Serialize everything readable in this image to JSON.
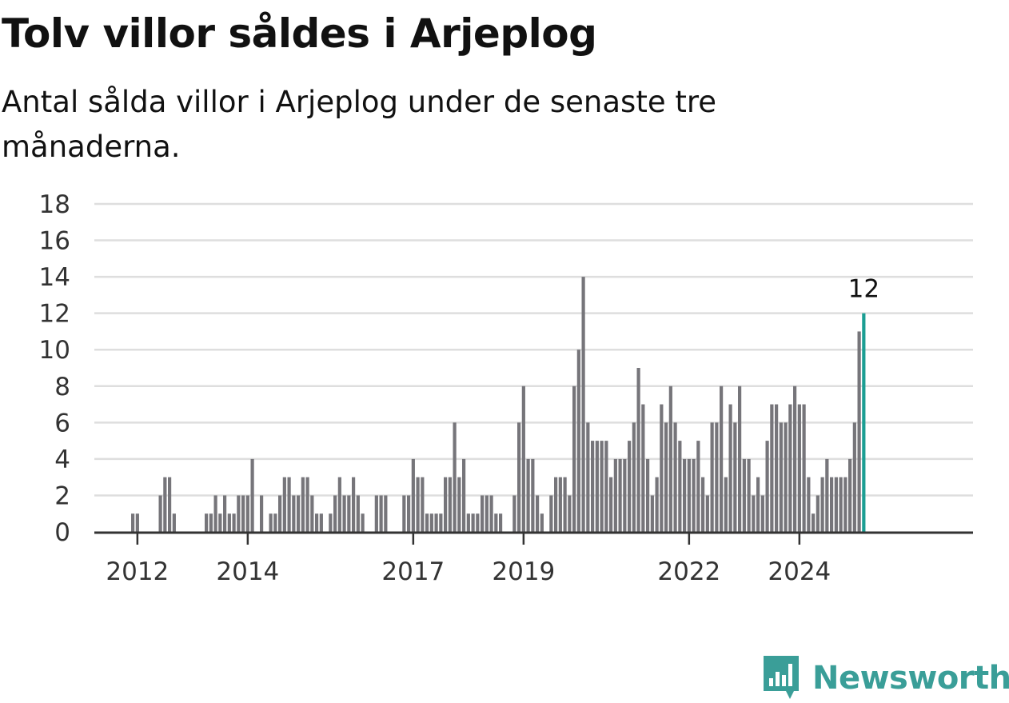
{
  "title": "Tolv villor såldes i Arjeplog",
  "subtitle": "Antal sålda villor i Arjeplog under de senaste tre månaderna.",
  "brand": "Newsworthy",
  "colors": {
    "bar": "#76757a",
    "highlight": "#1b9e93",
    "grid": "#dedede",
    "axis": "#333333",
    "brand": "#3a9e98"
  },
  "chart_data": {
    "type": "bar",
    "title": "Tolv villor såldes i Arjeplog",
    "subtitle": "Antal sålda villor i Arjeplog under de senaste tre månaderna.",
    "ylim": [
      0,
      18
    ],
    "yticks": [
      0,
      2,
      4,
      6,
      8,
      10,
      12,
      14,
      16,
      18
    ],
    "grid": true,
    "xticks": [
      {
        "label": "2012",
        "index": 9
      },
      {
        "label": "2014",
        "index": 33
      },
      {
        "label": "2017",
        "index": 69
      },
      {
        "label": "2019",
        "index": 93
      },
      {
        "label": "2022",
        "index": 129
      },
      {
        "label": "2024",
        "index": 153
      }
    ],
    "period": "rolling three-month, monthly from 2011-02 to 2025-05",
    "values": [
      0,
      0,
      0,
      0,
      0,
      0,
      0,
      0,
      1,
      1,
      0,
      0,
      0,
      0,
      2,
      3,
      3,
      1,
      0,
      0,
      0,
      0,
      0,
      0,
      1,
      1,
      2,
      1,
      2,
      1,
      1,
      2,
      2,
      2,
      4,
      0,
      2,
      0,
      1,
      1,
      2,
      3,
      3,
      2,
      2,
      3,
      3,
      2,
      1,
      1,
      0,
      1,
      2,
      3,
      2,
      2,
      3,
      2,
      1,
      0,
      0,
      2,
      2,
      2,
      0,
      0,
      0,
      2,
      2,
      4,
      3,
      3,
      1,
      1,
      1,
      1,
      3,
      3,
      6,
      3,
      4,
      1,
      1,
      1,
      2,
      2,
      2,
      1,
      1,
      0,
      0,
      2,
      6,
      8,
      4,
      4,
      2,
      1,
      0,
      2,
      3,
      3,
      3,
      2,
      8,
      10,
      14,
      6,
      5,
      5,
      5,
      5,
      3,
      4,
      4,
      4,
      5,
      6,
      9,
      7,
      4,
      2,
      3,
      7,
      6,
      8,
      6,
      5,
      4,
      4,
      4,
      5,
      3,
      2,
      6,
      6,
      8,
      3,
      7,
      6,
      8,
      4,
      4,
      2,
      3,
      2,
      5,
      7,
      7,
      6,
      6,
      7,
      8,
      7,
      7,
      3,
      1,
      2,
      3,
      4,
      3,
      3,
      3,
      3,
      4,
      6,
      11,
      12
    ],
    "highlight_label": "12"
  }
}
